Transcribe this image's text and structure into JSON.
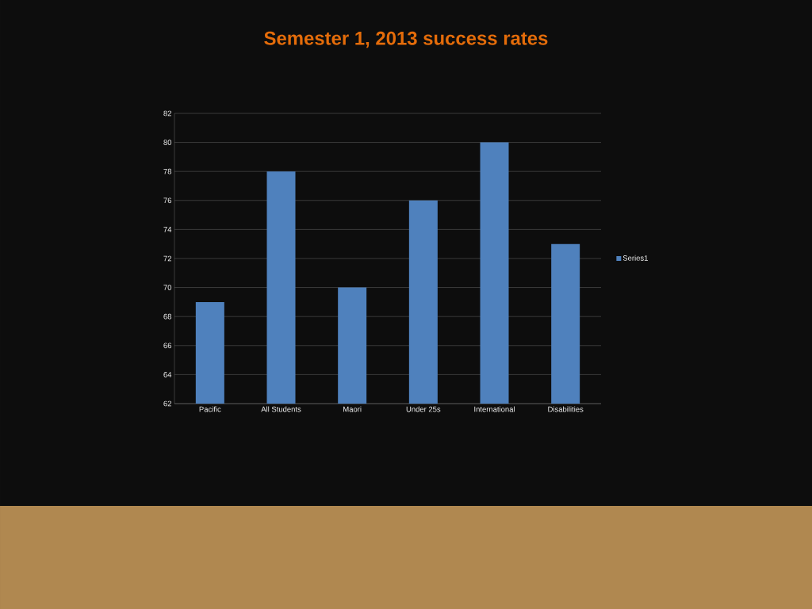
{
  "chart_data": {
    "type": "bar",
    "title": "Semester 1, 2013 success rates",
    "categories": [
      "Pacific",
      "All Students",
      "Maori",
      "Under 25s",
      "International",
      "Disabilities"
    ],
    "series": [
      {
        "name": "Series1",
        "color": "#4f81bd",
        "values": [
          69,
          78,
          70,
          76,
          80,
          73
        ]
      }
    ],
    "ylim": [
      62,
      82
    ],
    "yticks": [
      62,
      64,
      66,
      68,
      70,
      72,
      74,
      76,
      78,
      80,
      82
    ],
    "grid": "y",
    "legend": "right"
  }
}
